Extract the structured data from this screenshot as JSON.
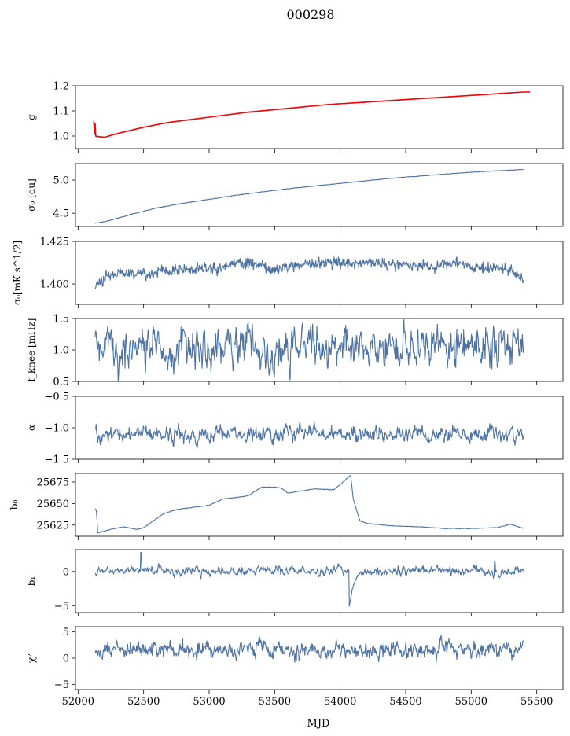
{
  "figure": {
    "title": "000298",
    "xlabel": "MJD",
    "colors": {
      "series": "#4c72a4",
      "fit": "#ff0000",
      "axis": "#000000"
    }
  },
  "chart_data": [
    {
      "type": "line",
      "id": "g",
      "ylabel": "g",
      "xlim": [
        51980,
        55700
      ],
      "ylim": [
        0.95,
        1.2
      ],
      "yticks": [
        1.0,
        1.1,
        1.2
      ],
      "ytick_labels": [
        "1.0",
        "1.1",
        "1.2"
      ],
      "x": [
        52120,
        52140,
        52200,
        52300,
        52500,
        52700,
        53000,
        53300,
        53600,
        53900,
        54200,
        54500,
        54800,
        55100,
        55400
      ],
      "values": [
        1.01,
        1.0,
        0.995,
        1.01,
        1.035,
        1.055,
        1.075,
        1.095,
        1.11,
        1.125,
        1.135,
        1.145,
        1.155,
        1.165,
        1.175
      ],
      "fit_series": {
        "x": [
          52120,
          52125,
          52130,
          52135,
          52140,
          52200,
          52300,
          52500,
          52700,
          53000,
          53300,
          53600,
          53900,
          54200,
          54500,
          54800,
          55100,
          55400,
          55450
        ],
        "values": [
          1.06,
          1.01,
          1.05,
          1.0,
          0.998,
          0.995,
          1.01,
          1.035,
          1.055,
          1.075,
          1.095,
          1.11,
          1.125,
          1.135,
          1.145,
          1.155,
          1.165,
          1.175,
          1.175
        ]
      }
    },
    {
      "type": "line",
      "id": "sigma0",
      "ylabel": "σ₀ [du]",
      "xlim": [
        51980,
        55700
      ],
      "ylim": [
        4.3,
        5.25
      ],
      "yticks": [
        4.5,
        5.0
      ],
      "ytick_labels": [
        "4.5",
        "5.0"
      ],
      "x": [
        52130,
        52200,
        52400,
        52600,
        52800,
        53000,
        53200,
        53400,
        53600,
        53800,
        54000,
        54200,
        54400,
        54600,
        54800,
        55000,
        55200,
        55400
      ],
      "values": [
        4.35,
        4.37,
        4.48,
        4.58,
        4.65,
        4.71,
        4.77,
        4.82,
        4.87,
        4.91,
        4.95,
        4.99,
        5.03,
        5.06,
        5.09,
        5.12,
        5.14,
        5.16
      ]
    },
    {
      "type": "line",
      "id": "sigma0w",
      "ylabel": "σ₀[mK s^1/2]",
      "xlim": [
        51980,
        55700
      ],
      "ylim": [
        1.388,
        1.425
      ],
      "yticks": [
        1.4,
        1.425
      ],
      "ytick_labels": [
        "1.400",
        "1.425"
      ],
      "trend": {
        "x": [
          52130,
          52200,
          52300,
          52500,
          52700,
          52900,
          53100,
          53300,
          53500,
          53700,
          53900,
          54100,
          54300,
          54500,
          54700,
          54900,
          55100,
          55300,
          55400
        ],
        "values": [
          1.398,
          1.404,
          1.406,
          1.406,
          1.407,
          1.409,
          1.41,
          1.413,
          1.408,
          1.412,
          1.413,
          1.412,
          1.412,
          1.411,
          1.41,
          1.412,
          1.409,
          1.409,
          1.401
        ]
      },
      "noise_sd": 0.0018
    },
    {
      "type": "line",
      "id": "fknee",
      "ylabel": "f_knee [mHz]",
      "xlim": [
        51980,
        55700
      ],
      "ylim": [
        0.5,
        1.5
      ],
      "yticks": [
        0.5,
        1.0,
        1.5
      ],
      "ytick_labels": [
        "0.5",
        "1.0",
        "1.5"
      ],
      "x_range": [
        52130,
        55400
      ],
      "mean": 1.05,
      "noise_sd": 0.17
    },
    {
      "type": "line",
      "id": "alpha",
      "ylabel": "α",
      "xlim": [
        51980,
        55700
      ],
      "ylim": [
        -1.5,
        -0.5
      ],
      "yticks": [
        -1.5,
        -1.0,
        -0.5
      ],
      "ytick_labels": [
        "−1.5",
        "−1.0",
        "−0.5"
      ],
      "x_range": [
        52130,
        55400
      ],
      "mean": -1.1,
      "noise_sd": 0.07
    },
    {
      "type": "line",
      "id": "b0",
      "ylabel": "b₀",
      "xlim": [
        51980,
        55700
      ],
      "ylim": [
        25612,
        25685
      ],
      "yticks": [
        25625,
        25650,
        25675
      ],
      "ytick_labels": [
        "25625",
        "25650",
        "25675"
      ],
      "x": [
        52130,
        52140,
        52150,
        52250,
        52350,
        52450,
        52500,
        52650,
        52750,
        53000,
        53100,
        53300,
        53400,
        53500,
        53550,
        53600,
        53800,
        53950,
        54000,
        54080,
        54100,
        54150,
        54200,
        54400,
        54600,
        54800,
        55000,
        55200,
        55300,
        55400
      ],
      "values": [
        25644,
        25642,
        25616,
        25620,
        25623,
        25620,
        25622,
        25638,
        25643,
        25648,
        25655,
        25659,
        25669,
        25669,
        25668,
        25662,
        25667,
        25666,
        25672,
        25683,
        25655,
        25630,
        25627,
        25624,
        25623,
        25621,
        25621,
        25622,
        25626,
        25621
      ]
    },
    {
      "type": "line",
      "id": "b1",
      "ylabel": "b₁",
      "xlim": [
        51980,
        55700
      ],
      "ylim": [
        -6,
        3.2
      ],
      "yticks": [
        -5,
        0
      ],
      "ytick_labels": [
        "−5",
        "0"
      ],
      "x_range": [
        52130,
        55400
      ],
      "mean": 0.1,
      "noise_sd": 0.35,
      "events": [
        {
          "x": 52480,
          "value": 2.8
        },
        {
          "x": 54070,
          "value": -5.3
        },
        {
          "x": 55180,
          "value": 1.5
        }
      ]
    },
    {
      "type": "line",
      "id": "chi2",
      "ylabel": "χ²",
      "xlim": [
        51980,
        55700
      ],
      "ylim": [
        -6,
        6
      ],
      "yticks": [
        -5,
        0,
        5
      ],
      "ytick_labels": [
        "−5",
        "0",
        "5"
      ],
      "x_range": [
        52130,
        55400
      ],
      "mean": 1.6,
      "noise_sd": 0.9,
      "xticks": [
        52000,
        52500,
        53000,
        53500,
        54000,
        54500,
        55000,
        55500
      ],
      "xtick_labels": [
        "52000",
        "52500",
        "53000",
        "53500",
        "54000",
        "54500",
        "55000",
        "55500"
      ]
    }
  ]
}
